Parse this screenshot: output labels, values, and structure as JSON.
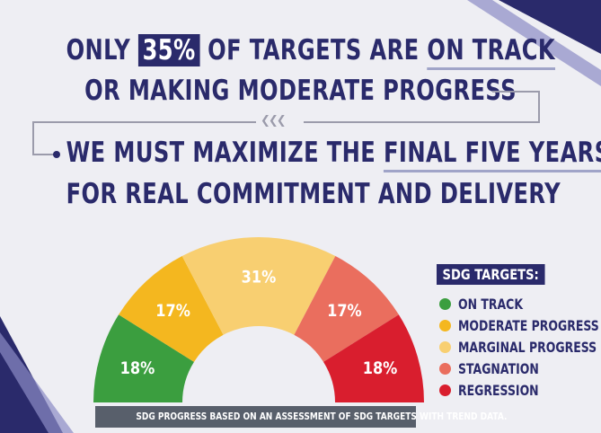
{
  "headline": {
    "line1_pre": "ONLY ",
    "line1_highlight": "35%",
    "line1_mid": " OF TARGETS ARE ",
    "line1_underline": "ON TRACK",
    "line2": "OR MAKING MODERATE PROGRESS",
    "line3_pre": "WE MUST MAXIMIZE THE ",
    "line3_underline": "FINAL FIVE YEARS",
    "line4": "FOR REAL COMMITMENT AND DELIVERY"
  },
  "chart_data": {
    "type": "pie",
    "style": "semicircle-gauge",
    "categories": [
      "ON TRACK",
      "MODERATE PROGRESS",
      "MARGINAL PROGRESS",
      "STAGNATION",
      "REGRESSION"
    ],
    "values": [
      18,
      17,
      31,
      17,
      18
    ],
    "labels": [
      "18%",
      "17%",
      "31%",
      "17%",
      "18%"
    ],
    "colors": [
      "#3b9e3f",
      "#f4b71f",
      "#f8cf71",
      "#ea6e5e",
      "#d91e2e"
    ],
    "legend_title": "SDG TARGETS:",
    "legend_position": "right"
  },
  "footer": "SDG PROGRESS BASED ON AN ASSESSMENT OF SDG TARGETS WITH TREND DATA."
}
